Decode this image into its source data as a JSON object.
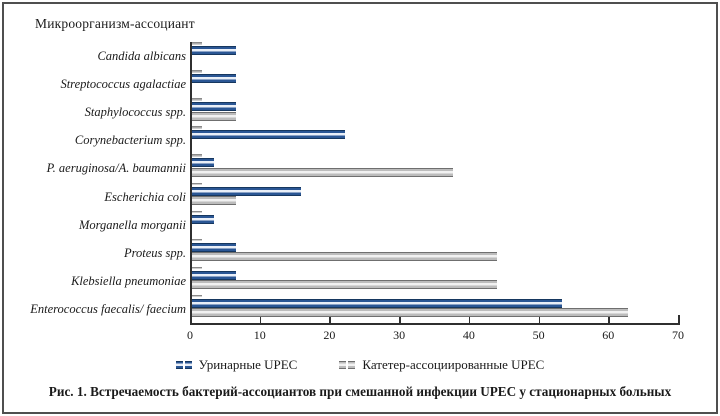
{
  "figure": {
    "frame_color": "#4f4f4f",
    "caption": "Рис. 1. Встречаемость бактерий-ассоциантов при смешанной инфекции UPEC у стационарных больных"
  },
  "chart_data": {
    "type": "bar",
    "orientation": "horizontal",
    "title": "Микроорганизм-ассоциант",
    "xlabel": "",
    "ylabel": "Микроорганизм-ассоциант",
    "xlim": [
      0,
      70
    ],
    "xticks": [
      0,
      10,
      20,
      30,
      40,
      50,
      60,
      70
    ],
    "grid": false,
    "legend_position": "bottom",
    "categories": [
      "Candida albicans",
      "Streptococcus agalactiae",
      "Staphylococcus spp.",
      "Corynebacterium spp.",
      "P. aeruginosa/A. baumannii",
      "Escherichia coli",
      "Morganella morganii",
      "Proteus spp.",
      "Klebsiella pneumoniae",
      "Enterococcus faecalis/ faecium"
    ],
    "series": [
      {
        "name": "Уринарные UPEC",
        "color": "#1f4e82",
        "values": [
          6.3,
          6.3,
          6.3,
          21.9,
          3.1,
          15.6,
          3.1,
          6.3,
          6.3,
          53.1
        ]
      },
      {
        "name": "Катетер-ассоциированные UPEC",
        "color": "#bcbcbc",
        "values": [
          0,
          0,
          6.3,
          0,
          37.5,
          6.3,
          0,
          43.8,
          43.8,
          62.5
        ]
      }
    ]
  }
}
